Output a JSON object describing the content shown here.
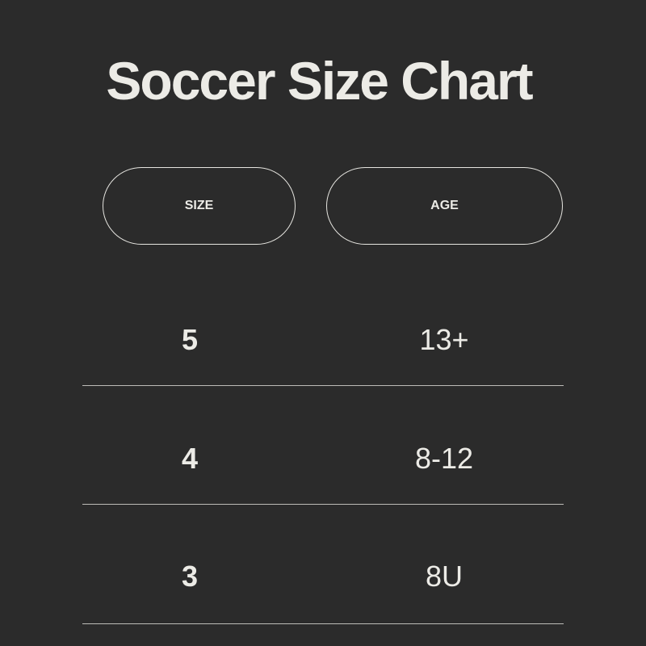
{
  "title": "Soccer Size Chart",
  "headers": {
    "size": "SIZE",
    "age": "AGE"
  },
  "rows": [
    {
      "size": "5",
      "age": "13+"
    },
    {
      "size": "4",
      "age": "8-12"
    },
    {
      "size": "3",
      "age": "8U"
    }
  ],
  "colors": {
    "background": "#2b2b2b",
    "text": "#ecebe6"
  }
}
